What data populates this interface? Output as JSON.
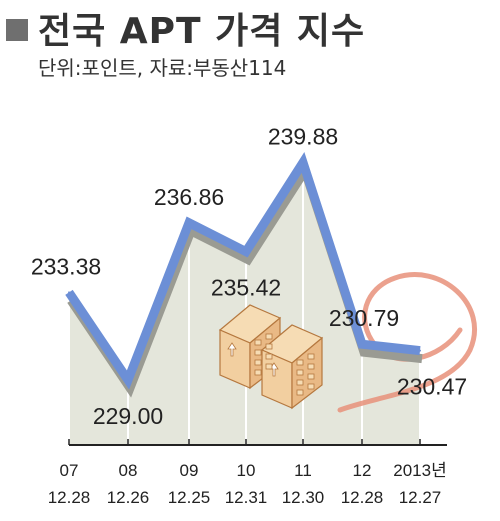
{
  "header": {
    "title": "전국 APT 가격 지수",
    "subtitle": "단위:포인트, 자료:부동산114"
  },
  "colors": {
    "area_fill": "#e4e6db",
    "line": "#6c8fd6",
    "line_shadow": "#9a9b93",
    "circle_accent": "#e8907a",
    "building_fill": "#f2cfa0",
    "building_stroke": "#b5783f"
  },
  "chart_data": {
    "type": "line",
    "x": [
      "07",
      "08",
      "09",
      "10",
      "11",
      "12",
      "2013년"
    ],
    "x_dates": [
      "12.28",
      "12.26",
      "12.25",
      "12.31",
      "12.30",
      "12.28",
      "12.27"
    ],
    "values": [
      233.38,
      229.0,
      236.86,
      235.42,
      239.88,
      230.79,
      230.47
    ],
    "value_labels": [
      "233.38",
      "229.00",
      "236.86",
      "235.42",
      "239.88",
      "230.79",
      "230.47"
    ],
    "ylim": [
      224,
      243
    ],
    "grid": false,
    "title": "전국 APT 가격 지수",
    "xlabel": "",
    "ylabel": ""
  }
}
